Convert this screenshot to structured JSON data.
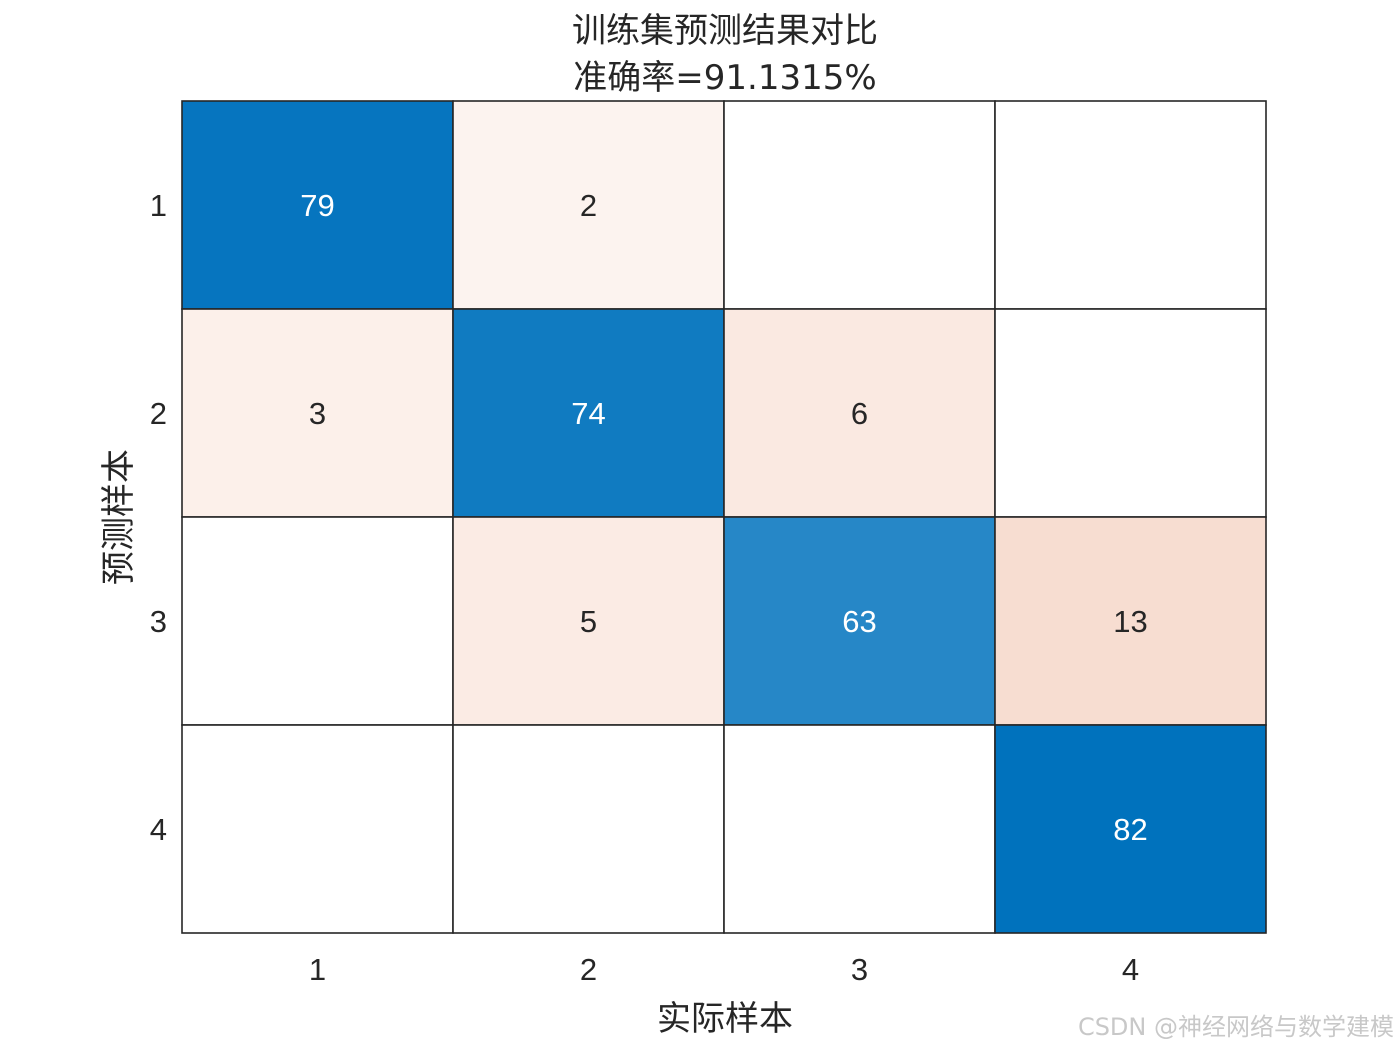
{
  "chart_data": {
    "type": "heatmap",
    "title": [
      "训练集预测结果对比",
      "准确率=91.1315%"
    ],
    "xlabel": "实际样本",
    "ylabel": "预测样本",
    "x_categories": [
      "1",
      "2",
      "3",
      "4"
    ],
    "y_categories": [
      "1",
      "2",
      "3",
      "4"
    ],
    "matrix": [
      [
        79,
        2,
        0,
        0
      ],
      [
        3,
        74,
        6,
        0
      ],
      [
        0,
        5,
        63,
        13
      ],
      [
        0,
        0,
        0,
        82
      ]
    ],
    "show_zero_values": false,
    "diagonal_color": "#0072bd",
    "off_diagonal_color": "#d95319",
    "grid_line_color": "#262626"
  },
  "watermark": "CSDN @神经网络与数学建模"
}
